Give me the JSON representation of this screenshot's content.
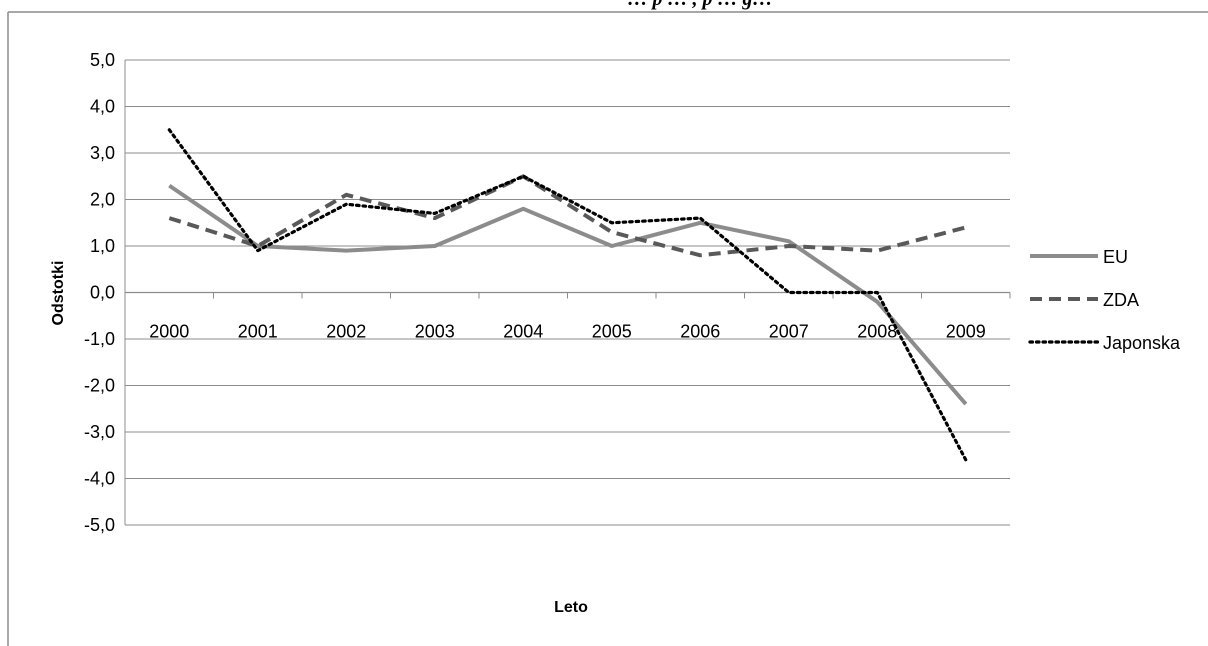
{
  "chart_data": {
    "type": "line",
    "title": "… p … , p … g…",
    "xlabel": "Leto",
    "ylabel": "Odstotki",
    "categories": [
      "2000",
      "2001",
      "2002",
      "2003",
      "2004",
      "2005",
      "2006",
      "2007",
      "2008",
      "2009"
    ],
    "ylim": [
      -5.0,
      5.0
    ],
    "yticks": [
      "5,0",
      "4,0",
      "3,0",
      "2,0",
      "1,0",
      "0,0",
      "-1,0",
      "-2,0",
      "-3,0",
      "-4,0",
      "-5,0"
    ],
    "grid": true,
    "legend_position": "right",
    "series": [
      {
        "name": "EU",
        "values": [
          2.3,
          1.0,
          0.9,
          1.0,
          1.8,
          1.0,
          1.5,
          1.1,
          -0.2,
          -2.4
        ],
        "color": "#8c8c8c",
        "style": "solid"
      },
      {
        "name": "ZDA",
        "values": [
          1.6,
          1.0,
          2.1,
          1.6,
          2.5,
          1.3,
          0.8,
          1.0,
          0.9,
          1.4
        ],
        "color": "#595959",
        "style": "dashed"
      },
      {
        "name": "Japonska",
        "values": [
          3.5,
          0.9,
          1.9,
          1.7,
          2.5,
          1.5,
          1.6,
          0.0,
          0.0,
          -3.6
        ],
        "color": "#000000",
        "style": "dotted"
      }
    ]
  }
}
